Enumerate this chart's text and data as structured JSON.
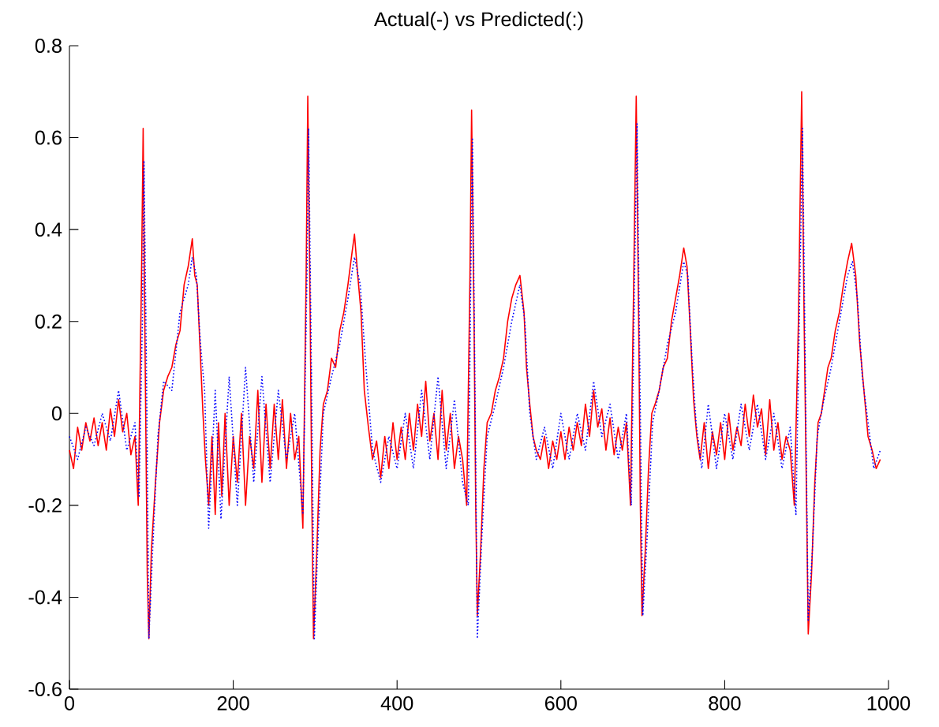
{
  "chart_data": {
    "type": "line",
    "title": "Actual(-) vs Predicted(:)",
    "xlim": [
      0,
      1000
    ],
    "ylim": [
      -0.6,
      0.8
    ],
    "xticks": [
      0,
      200,
      400,
      600,
      800,
      1000
    ],
    "yticks": [
      -0.6,
      -0.4,
      -0.2,
      0,
      0.2,
      0.4,
      0.6,
      0.8
    ],
    "marker": "none",
    "series": [
      {
        "color": "#ff0000",
        "line_style": "solid",
        "x": [
          0,
          5,
          10,
          15,
          20,
          25,
          30,
          35,
          40,
          45,
          50,
          55,
          60,
          65,
          70,
          75,
          80,
          84,
          88,
          90,
          92,
          95,
          97,
          100,
          105,
          110,
          115,
          120,
          125,
          130,
          135,
          140,
          145,
          150,
          153,
          156,
          160,
          163,
          166,
          170,
          174,
          178,
          182,
          186,
          190,
          195,
          200,
          205,
          210,
          215,
          220,
          225,
          230,
          235,
          240,
          245,
          250,
          255,
          260,
          265,
          270,
          275,
          280,
          285,
          289,
          291,
          294,
          296,
          298,
          302,
          306,
          310,
          315,
          320,
          325,
          330,
          335,
          340,
          345,
          348,
          352,
          356,
          360,
          365,
          370,
          375,
          380,
          385,
          390,
          395,
          400,
          405,
          410,
          415,
          420,
          425,
          430,
          435,
          440,
          445,
          450,
          455,
          460,
          465,
          470,
          475,
          480,
          485,
          489,
          491,
          494,
          496,
          498,
          502,
          506,
          510,
          515,
          520,
          525,
          530,
          535,
          540,
          545,
          550,
          555,
          558,
          562,
          566,
          570,
          575,
          580,
          585,
          590,
          595,
          600,
          605,
          610,
          615,
          620,
          625,
          630,
          635,
          640,
          645,
          650,
          655,
          660,
          665,
          670,
          675,
          680,
          685,
          689,
          692,
          695,
          697,
          699,
          703,
          707,
          711,
          715,
          720,
          725,
          730,
          735,
          740,
          745,
          750,
          754,
          758,
          762,
          766,
          770,
          775,
          780,
          785,
          790,
          795,
          800,
          805,
          810,
          815,
          820,
          825,
          830,
          835,
          840,
          845,
          850,
          855,
          860,
          865,
          870,
          875,
          880,
          885,
          890,
          894,
          897,
          900,
          902,
          906,
          910,
          914,
          918,
          922,
          926,
          930,
          935,
          940,
          945,
          950,
          955,
          960,
          965,
          970,
          975,
          980,
          985,
          990
        ],
        "values": [
          -0.08,
          -0.12,
          -0.03,
          -0.08,
          -0.02,
          -0.06,
          -0.01,
          -0.07,
          -0.02,
          -0.08,
          0.01,
          -0.05,
          0.03,
          -0.04,
          0.0,
          -0.09,
          -0.05,
          -0.2,
          0.3,
          0.62,
          0.2,
          -0.35,
          -0.49,
          -0.3,
          -0.15,
          -0.02,
          0.05,
          0.08,
          0.1,
          0.15,
          0.18,
          0.28,
          0.32,
          0.38,
          0.3,
          0.28,
          0.12,
          0.0,
          -0.1,
          -0.2,
          -0.05,
          -0.22,
          -0.02,
          -0.18,
          0.0,
          -0.2,
          -0.05,
          -0.15,
          0.0,
          -0.2,
          -0.05,
          -0.12,
          0.05,
          -0.15,
          0.02,
          -0.12,
          0.02,
          -0.1,
          0.03,
          -0.12,
          0.0,
          -0.1,
          -0.05,
          -0.25,
          0.3,
          0.69,
          0.2,
          -0.2,
          -0.49,
          -0.3,
          -0.08,
          0.02,
          0.05,
          0.12,
          0.1,
          0.18,
          0.22,
          0.28,
          0.35,
          0.39,
          0.3,
          0.22,
          0.05,
          -0.03,
          -0.1,
          -0.06,
          -0.14,
          -0.05,
          -0.12,
          -0.02,
          -0.1,
          -0.03,
          -0.1,
          0.0,
          -0.08,
          0.02,
          -0.05,
          0.07,
          -0.06,
          0.0,
          -0.1,
          0.05,
          -0.08,
          0.0,
          -0.12,
          -0.05,
          -0.1,
          -0.2,
          0.3,
          0.66,
          0.2,
          -0.2,
          -0.44,
          -0.3,
          -0.12,
          -0.02,
          0.0,
          0.05,
          0.08,
          0.12,
          0.2,
          0.25,
          0.28,
          0.3,
          0.22,
          0.1,
          0.02,
          -0.05,
          -0.08,
          -0.1,
          -0.05,
          -0.12,
          -0.06,
          -0.1,
          -0.04,
          -0.1,
          -0.03,
          -0.08,
          -0.02,
          -0.07,
          0.02,
          -0.05,
          0.05,
          -0.03,
          0.01,
          -0.08,
          -0.01,
          -0.09,
          -0.03,
          -0.08,
          -0.02,
          -0.2,
          0.3,
          0.69,
          0.2,
          -0.2,
          -0.44,
          -0.3,
          -0.12,
          0.0,
          0.02,
          0.05,
          0.1,
          0.12,
          0.2,
          0.25,
          0.3,
          0.36,
          0.32,
          0.18,
          0.03,
          -0.05,
          -0.1,
          -0.02,
          -0.12,
          -0.04,
          -0.09,
          -0.02,
          -0.1,
          0.0,
          -0.08,
          -0.03,
          -0.07,
          0.02,
          -0.05,
          0.04,
          -0.03,
          0.01,
          -0.09,
          0.03,
          -0.08,
          -0.02,
          -0.1,
          -0.05,
          -0.08,
          -0.2,
          0.2,
          0.7,
          0.2,
          -0.2,
          -0.48,
          -0.35,
          -0.15,
          -0.02,
          0.0,
          0.05,
          0.1,
          0.12,
          0.18,
          0.22,
          0.28,
          0.33,
          0.37,
          0.3,
          0.15,
          0.05,
          -0.05,
          -0.08,
          -0.12,
          -0.1
        ]
      },
      {
        "color": "#0000ff",
        "line_style": "dotted",
        "x": [
          0,
          10,
          20,
          30,
          40,
          50,
          60,
          70,
          80,
          85,
          89,
          91,
          94,
          97,
          102,
          108,
          115,
          125,
          135,
          145,
          150,
          155,
          160,
          165,
          170,
          178,
          185,
          195,
          205,
          215,
          225,
          235,
          245,
          255,
          265,
          275,
          285,
          290,
          292,
          296,
          299,
          304,
          310,
          320,
          330,
          340,
          348,
          355,
          362,
          370,
          380,
          390,
          400,
          410,
          420,
          430,
          440,
          450,
          460,
          470,
          480,
          487,
          490,
          492,
          496,
          498,
          504,
          510,
          520,
          530,
          540,
          550,
          556,
          562,
          570,
          580,
          590,
          600,
          610,
          620,
          630,
          640,
          650,
          660,
          670,
          680,
          686,
          690,
          693,
          697,
          700,
          705,
          712,
          720,
          730,
          740,
          750,
          755,
          760,
          765,
          772,
          780,
          790,
          800,
          810,
          820,
          830,
          840,
          850,
          860,
          870,
          880,
          887,
          892,
          895,
          899,
          902,
          907,
          913,
          920,
          930,
          940,
          950,
          956,
          962,
          968,
          975,
          982,
          990
        ],
        "values": [
          -0.05,
          -0.1,
          -0.03,
          -0.07,
          0.0,
          -0.06,
          0.05,
          -0.08,
          -0.02,
          -0.18,
          0.2,
          0.55,
          0.1,
          -0.49,
          -0.28,
          -0.05,
          0.07,
          0.05,
          0.22,
          0.28,
          0.34,
          0.3,
          0.15,
          0.05,
          -0.25,
          0.05,
          -0.23,
          0.08,
          -0.2,
          0.1,
          -0.15,
          0.08,
          -0.15,
          0.05,
          -0.1,
          0.0,
          -0.22,
          0.3,
          0.62,
          0.0,
          -0.49,
          -0.25,
          0.0,
          0.08,
          0.15,
          0.25,
          0.34,
          0.28,
          0.1,
          -0.08,
          -0.15,
          -0.05,
          -0.12,
          0.0,
          -0.12,
          0.05,
          -0.1,
          0.08,
          -0.12,
          0.03,
          -0.15,
          -0.2,
          0.3,
          0.6,
          -0.1,
          -0.49,
          -0.25,
          -0.05,
          0.02,
          0.1,
          0.2,
          0.28,
          0.2,
          0.0,
          -0.1,
          -0.03,
          -0.12,
          0.0,
          -0.1,
          0.0,
          -0.08,
          0.07,
          -0.05,
          0.02,
          -0.1,
          0.0,
          -0.2,
          0.3,
          0.63,
          0.0,
          -0.44,
          -0.28,
          -0.02,
          0.05,
          0.15,
          0.22,
          0.33,
          0.3,
          0.12,
          -0.02,
          -0.12,
          0.02,
          -0.12,
          0.0,
          -0.1,
          0.02,
          -0.08,
          0.02,
          -0.1,
          0.0,
          -0.12,
          -0.03,
          -0.22,
          0.3,
          0.62,
          0.0,
          -0.45,
          -0.3,
          -0.05,
          0.02,
          0.1,
          0.2,
          0.3,
          0.33,
          0.25,
          0.08,
          -0.02,
          -0.12,
          -0.08
        ]
      }
    ]
  }
}
